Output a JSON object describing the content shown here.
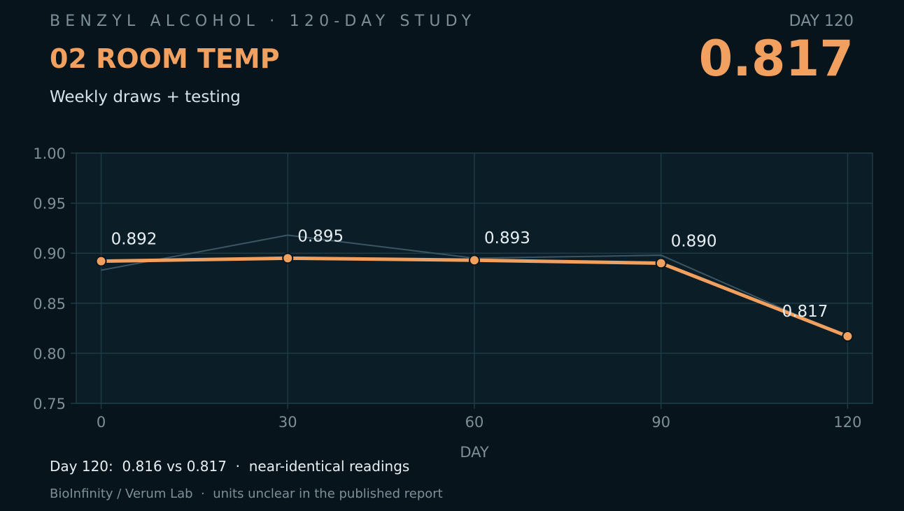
{
  "header": {
    "kicker": "BENZYL ALCOHOL · 120-DAY STUDY",
    "title": "02 ROOM TEMP",
    "subtitle": "Weekly draws + testing",
    "day_label": "DAY 120",
    "big_value": "0.817"
  },
  "colors": {
    "accent": "#f2a05f",
    "secondary_line": "#3a5663",
    "plot_bg": "#0b1d27",
    "grid": "#1e3a45"
  },
  "chart_data": {
    "type": "line",
    "xlabel": "DAY",
    "ylabel": "",
    "x_ticks": [
      0,
      30,
      60,
      90,
      120
    ],
    "y_ticks": [
      "0.75",
      "0.80",
      "0.85",
      "0.90",
      "0.95",
      "1.00"
    ],
    "xlim": [
      -4,
      124
    ],
    "ylim": [
      0.75,
      1.0
    ],
    "grid": true,
    "series": [
      {
        "role": "primary",
        "x": [
          0,
          30,
          60,
          90,
          120
        ],
        "values": [
          0.892,
          0.895,
          0.893,
          0.89,
          0.817
        ],
        "labels": [
          "0.892",
          "0.895",
          "0.893",
          "0.890",
          "0.817"
        ]
      },
      {
        "role": "secondary",
        "x": [
          0,
          30,
          60,
          90,
          120
        ],
        "values": [
          0.883,
          0.918,
          0.895,
          0.898,
          0.816
        ]
      }
    ]
  },
  "footer": {
    "note": "Day 120:  0.816 vs 0.817  ·  near-identical readings",
    "source": "BioInfinity / Verum Lab  ·  units unclear in the published report"
  }
}
